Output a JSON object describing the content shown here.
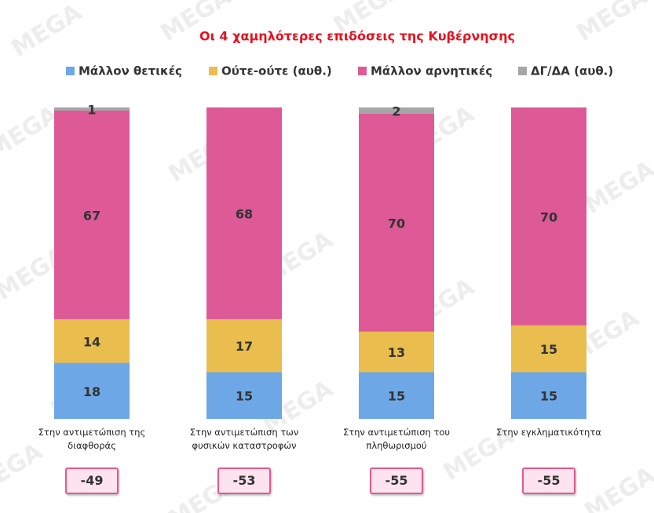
{
  "chart_data": {
    "type": "stacked-bar",
    "title": "Οι 4 χαμηλότερες επιδόσεις της Κυβέρνησης",
    "watermark": "MEGA",
    "categories": [
      "Στην αντιμετώπιση της διαφθοράς",
      "Στην αντιμετώπιση των φυσικών καταστροφών",
      "Στην αντιμετώπιση του πληθωρισμού",
      "Στην εγκληματικότητα"
    ],
    "series": [
      {
        "name": "Μάλλον θετικές",
        "color": "#6ea7e6",
        "values": [
          18,
          15,
          15,
          15
        ]
      },
      {
        "name": "Ούτε-ούτε  (αυθ.)",
        "color": "#e9bd4e",
        "values": [
          14,
          17,
          13,
          15
        ]
      },
      {
        "name": "Μάλλον αρνητικές",
        "color": "#dd5a97",
        "values": [
          67,
          68,
          70,
          70
        ]
      },
      {
        "name": "ΔΓ/ΔΑ (αυθ.)",
        "color": "#a6a6a6",
        "values": [
          1,
          0,
          2,
          0
        ]
      }
    ],
    "net_values": [
      -49,
      -53,
      -55,
      -55
    ],
    "ylim": [
      0,
      100
    ]
  }
}
